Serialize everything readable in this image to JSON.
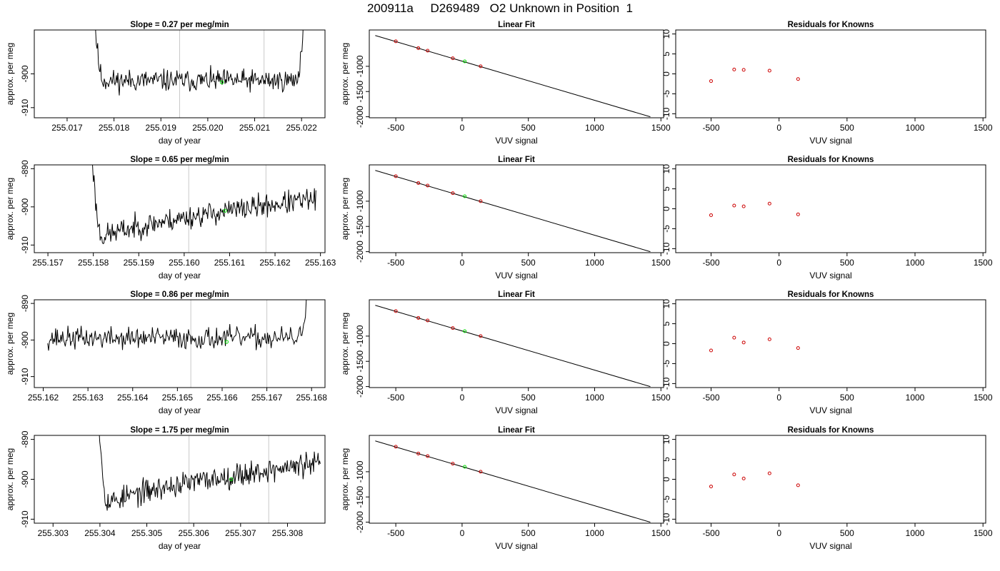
{
  "title": "200911a     D269489   O2 Unknown in Position  1",
  "colors": {
    "trace": "#000000",
    "marker_vline": "#c8c8c8",
    "unknown": "#00dd00",
    "known": "#cc0000",
    "fit": "#000000"
  },
  "chart_data": [
    {
      "type": "line",
      "title": "Slope =  0.27  per meg/min",
      "xlabel": "day of year",
      "ylabel": "approx. per meg",
      "xlim": [
        255.0163,
        255.0225
      ],
      "ylim": [
        -913,
        -887
      ],
      "xticks": [
        "255.017",
        "255.018",
        "255.019",
        "255.020",
        "255.021",
        "255.022"
      ],
      "xtick_values": [
        255.017,
        255.018,
        255.019,
        255.02,
        255.021,
        255.022
      ],
      "yticks": [
        "-910",
        "-900"
      ],
      "ytick_values": [
        -910,
        -900
      ],
      "trace": {
        "x_start": 255.0175,
        "x_end": 255.0221,
        "baseline": -902,
        "trend": 0,
        "noise": 3.2,
        "seed": 11,
        "spike_start": true,
        "spike_end": true
      },
      "vlines": [
        255.0194,
        255.0212
      ],
      "unknown_point": [
        255.0203,
        -902.5
      ]
    },
    {
      "type": "scatter",
      "title": "Linear Fit",
      "xlabel": "VUV signal",
      "ylabel": "approx. per meg",
      "xlim": [
        -700,
        1520
      ],
      "ylim": [
        -2020,
        -280
      ],
      "xticks": [
        "-500",
        "0",
        "500",
        "1000",
        "1500"
      ],
      "xtick_values": [
        -500,
        0,
        500,
        1000,
        1500
      ],
      "yticks": [
        "-1000",
        "-1500",
        "-2000"
      ],
      "ytick_values": [
        -1000,
        -1500,
        -2000
      ],
      "fit_line": {
        "x": [
          -655,
          1420
        ],
        "y": [
          -390,
          -2000
        ]
      },
      "knowns": {
        "x": [
          -500,
          -330,
          -260,
          -70,
          140
        ],
        "y": [
          -505,
          -640,
          -690,
          -840,
          -1000
        ]
      },
      "unknown": {
        "x": [
          20
        ],
        "y": [
          -902
        ]
      }
    },
    {
      "type": "scatter",
      "title": "Residuals for Knowns",
      "xlabel": "VUV signal",
      "xlim": [
        -760,
        1520
      ],
      "ylim": [
        -11,
        11
      ],
      "xticks": [
        "-500",
        "0",
        "500",
        "1000",
        "1500"
      ],
      "xtick_values": [
        -500,
        0,
        500,
        1000,
        1500
      ],
      "yticks": [
        "-10",
        "-5",
        "0",
        "5",
        "10"
      ],
      "ytick_values": [
        -10,
        -5,
        0,
        5,
        10
      ],
      "points": {
        "x": [
          -500,
          -330,
          -260,
          -70,
          140
        ],
        "y": [
          -1.8,
          1.1,
          1.0,
          0.8,
          -1.3
        ]
      }
    },
    {
      "type": "line",
      "title": "Slope =  0.65  per meg/min",
      "xlabel": "day of year",
      "ylabel": "approx. per meg",
      "xlim": [
        255.1567,
        255.1631
      ],
      "ylim": [
        -912,
        -889
      ],
      "xticks": [
        "255.157",
        "255.158",
        "255.159",
        "255.160",
        "255.161",
        "255.162",
        "255.163"
      ],
      "xtick_values": [
        255.157,
        255.158,
        255.159,
        255.16,
        255.161,
        255.162,
        255.163
      ],
      "yticks": [
        "-910",
        "-900",
        "-890"
      ],
      "ytick_values": [
        -910,
        -900,
        -890
      ],
      "trace": {
        "x_start": 255.1579,
        "x_end": 255.1629,
        "baseline": -910,
        "trend": 12,
        "noise": 3.0,
        "seed": 23,
        "spike_start": true,
        "spike_end": false
      },
      "vlines": [
        255.1601,
        255.1618
      ],
      "unknown_point": [
        255.1609,
        -901
      ]
    },
    {
      "type": "scatter",
      "title": "Linear Fit",
      "xlabel": "VUV signal",
      "ylabel": "approx. per meg",
      "xlim": [
        -700,
        1520
      ],
      "ylim": [
        -2020,
        -280
      ],
      "xticks": [
        "-500",
        "0",
        "500",
        "1000",
        "1500"
      ],
      "xtick_values": [
        -500,
        0,
        500,
        1000,
        1500
      ],
      "yticks": [
        "-1000",
        "-1500",
        "-2000"
      ],
      "ytick_values": [
        -1000,
        -1500,
        -2000
      ],
      "fit_line": {
        "x": [
          -655,
          1420
        ],
        "y": [
          -390,
          -2000
        ]
      },
      "knowns": {
        "x": [
          -500,
          -330,
          -260,
          -70,
          140
        ],
        "y": [
          -505,
          -640,
          -690,
          -840,
          -1000
        ]
      },
      "unknown": {
        "x": [
          20
        ],
        "y": [
          -902
        ]
      }
    },
    {
      "type": "scatter",
      "title": "Residuals for Knowns",
      "xlabel": "VUV signal",
      "xlim": [
        -760,
        1520
      ],
      "ylim": [
        -11,
        11
      ],
      "xticks": [
        "-500",
        "0",
        "500",
        "1000",
        "1500"
      ],
      "xtick_values": [
        -500,
        0,
        500,
        1000,
        1500
      ],
      "yticks": [
        "-10",
        "-5",
        "0",
        "5",
        "10"
      ],
      "ytick_values": [
        -10,
        -5,
        0,
        5,
        10
      ],
      "points": {
        "x": [
          -500,
          -330,
          -260,
          -70,
          140
        ],
        "y": [
          -1.6,
          0.8,
          0.6,
          1.3,
          -1.4
        ]
      }
    },
    {
      "type": "line",
      "title": "Slope =  0.86  per meg/min",
      "xlabel": "day of year",
      "ylabel": "approx. per meg",
      "xlim": [
        255.1618,
        255.1683
      ],
      "ylim": [
        -913,
        -889
      ],
      "xticks": [
        "255.162",
        "255.163",
        "255.164",
        "255.165",
        "255.166",
        "255.167",
        "255.168"
      ],
      "xtick_values": [
        255.162,
        255.163,
        255.164,
        255.165,
        255.166,
        255.167,
        255.168
      ],
      "yticks": [
        "-910",
        "-900",
        "-890"
      ],
      "ytick_values": [
        -910,
        -900,
        -890
      ],
      "trace": {
        "x_start": 255.1621,
        "x_end": 255.168,
        "baseline": -899.5,
        "trend": 0,
        "noise": 3.0,
        "seed": 37,
        "spike_start": false,
        "spike_end": true
      },
      "vlines": [
        255.1653,
        255.167
      ],
      "unknown_point": [
        255.1661,
        -900.5
      ]
    },
    {
      "type": "scatter",
      "title": "Linear Fit",
      "xlabel": "VUV signal",
      "ylabel": "approx. per meg",
      "xlim": [
        -700,
        1520
      ],
      "ylim": [
        -2020,
        -280
      ],
      "xticks": [
        "-500",
        "0",
        "500",
        "1000",
        "1500"
      ],
      "xtick_values": [
        -500,
        0,
        500,
        1000,
        1500
      ],
      "yticks": [
        "-1000",
        "-1500",
        "-2000"
      ],
      "ytick_values": [
        -1000,
        -1500,
        -2000
      ],
      "fit_line": {
        "x": [
          -655,
          1420
        ],
        "y": [
          -390,
          -2000
        ]
      },
      "knowns": {
        "x": [
          -500,
          -330,
          -260,
          -70,
          140
        ],
        "y": [
          -505,
          -640,
          -690,
          -840,
          -1000
        ]
      },
      "unknown": {
        "x": [
          20
        ],
        "y": [
          -902
        ]
      }
    },
    {
      "type": "scatter",
      "title": "Residuals for Knowns",
      "xlabel": "VUV signal",
      "xlim": [
        -760,
        1520
      ],
      "ylim": [
        -11,
        11
      ],
      "xticks": [
        "-500",
        "0",
        "500",
        "1000",
        "1500"
      ],
      "xtick_values": [
        -500,
        0,
        500,
        1000,
        1500
      ],
      "yticks": [
        "-10",
        "-5",
        "0",
        "5",
        "10"
      ],
      "ytick_values": [
        -10,
        -5,
        0,
        5,
        10
      ],
      "points": {
        "x": [
          -500,
          -330,
          -260,
          -70,
          140
        ],
        "y": [
          -1.7,
          1.5,
          0.3,
          1.1,
          -1.1
        ]
      }
    },
    {
      "type": "line",
      "title": "Slope =  1.75  per meg/min",
      "xlabel": "day of year",
      "ylabel": "approx. per meg",
      "xlim": [
        255.3026,
        255.3088
      ],
      "ylim": [
        -911,
        -889
      ],
      "xticks": [
        "255.303",
        "255.304",
        "255.305",
        "255.306",
        "255.307",
        "255.308"
      ],
      "xtick_values": [
        255.303,
        255.304,
        255.305,
        255.306,
        255.307,
        255.308
      ],
      "yticks": [
        "-910",
        "-900",
        "-890"
      ],
      "ytick_values": [
        -910,
        -900,
        -890
      ],
      "trace": {
        "x_start": 255.3039,
        "x_end": 255.3087,
        "baseline": -908,
        "trend": 12,
        "noise": 3.0,
        "seed": 53,
        "spike_start": true,
        "spike_end": false
      },
      "vlines": [
        255.3059,
        255.3076
      ],
      "unknown_point": [
        255.3068,
        -900
      ]
    },
    {
      "type": "scatter",
      "title": "Linear Fit",
      "xlabel": "VUV signal",
      "ylabel": "approx. per meg",
      "xlim": [
        -700,
        1520
      ],
      "ylim": [
        -2020,
        -280
      ],
      "xticks": [
        "-500",
        "0",
        "500",
        "1000",
        "1500"
      ],
      "xtick_values": [
        -500,
        0,
        500,
        1000,
        1500
      ],
      "yticks": [
        "-1000",
        "-1500",
        "-2000"
      ],
      "ytick_values": [
        -1000,
        -1500,
        -2000
      ],
      "fit_line": {
        "x": [
          -655,
          1420
        ],
        "y": [
          -390,
          -2000
        ]
      },
      "knowns": {
        "x": [
          -500,
          -330,
          -260,
          -70,
          140
        ],
        "y": [
          -505,
          -640,
          -690,
          -840,
          -1000
        ]
      },
      "unknown": {
        "x": [
          20
        ],
        "y": [
          -902
        ]
      }
    },
    {
      "type": "scatter",
      "title": "Residuals for Knowns",
      "xlabel": "VUV signal",
      "xlim": [
        -760,
        1520
      ],
      "ylim": [
        -11,
        11
      ],
      "xticks": [
        "-500",
        "0",
        "500",
        "1000",
        "1500"
      ],
      "xtick_values": [
        -500,
        0,
        500,
        1000,
        1500
      ],
      "yticks": [
        "-10",
        "-5",
        "0",
        "5",
        "10"
      ],
      "ytick_values": [
        -10,
        -5,
        0,
        5,
        10
      ],
      "points": {
        "x": [
          -500,
          -330,
          -260,
          -70,
          140
        ],
        "y": [
          -1.8,
          1.2,
          0.2,
          1.5,
          -1.5
        ]
      }
    }
  ]
}
